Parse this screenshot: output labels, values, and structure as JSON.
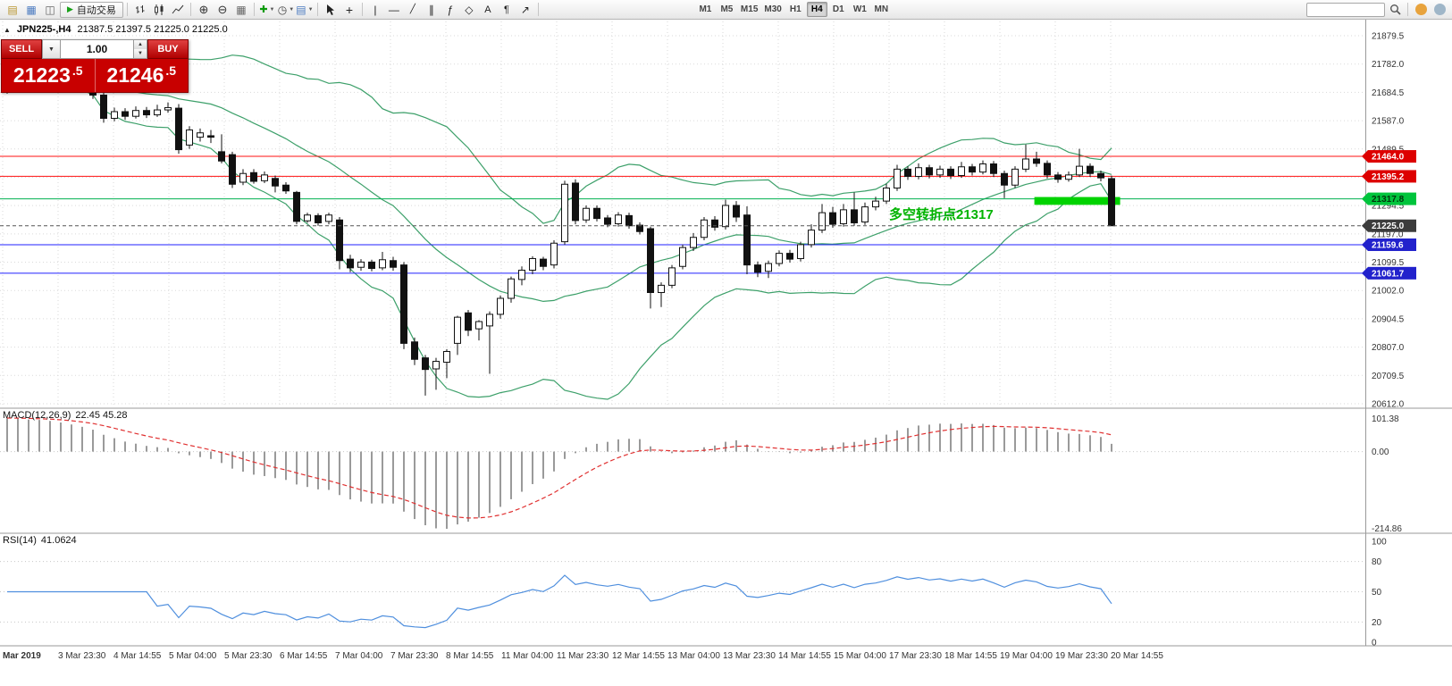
{
  "toolbar": {
    "auto_trading_label": "自动交易",
    "timeframes": [
      "M1",
      "M5",
      "M15",
      "M30",
      "H1",
      "H4",
      "D1",
      "W1",
      "MN"
    ],
    "active_timeframe": "H4",
    "items": [
      {
        "type": "icon",
        "name": "new-order-icon"
      },
      {
        "type": "icon",
        "name": "chart-window-icon"
      },
      {
        "type": "icon",
        "name": "profiles-icon"
      },
      {
        "type": "auto"
      },
      {
        "type": "sep"
      },
      {
        "type": "icon",
        "name": "bar-chart-icon"
      },
      {
        "type": "icon",
        "name": "candlestick-chart-icon"
      },
      {
        "type": "icon",
        "name": "line-chart-icon"
      },
      {
        "type": "sep"
      },
      {
        "type": "icon",
        "name": "zoom-in-icon"
      },
      {
        "type": "icon",
        "name": "zoom-out-icon"
      },
      {
        "type": "icon",
        "name": "tile-windows-icon"
      },
      {
        "type": "sep"
      },
      {
        "type": "icon",
        "name": "indicators-icon",
        "caret": true
      },
      {
        "type": "icon",
        "name": "periods-icon",
        "caret": true
      },
      {
        "type": "icon",
        "name": "templates-icon",
        "caret": true
      },
      {
        "type": "sep"
      },
      {
        "type": "icon",
        "name": "cursor-icon"
      },
      {
        "type": "icon",
        "name": "crosshair-icon"
      },
      {
        "type": "sep"
      },
      {
        "type": "icon",
        "name": "vertical-line-icon"
      },
      {
        "type": "icon",
        "name": "horizontal-line-icon"
      },
      {
        "type": "icon",
        "name": "trendline-icon"
      },
      {
        "type": "icon",
        "name": "channel-icon"
      },
      {
        "type": "icon",
        "name": "fibonacci-icon"
      },
      {
        "type": "icon",
        "name": "shapes-icon"
      },
      {
        "type": "icon",
        "name": "text-icon"
      },
      {
        "type": "icon",
        "name": "text-label-icon"
      },
      {
        "type": "icon",
        "name": "arrow-icon"
      },
      {
        "type": "sep"
      },
      {
        "type": "fixed"
      },
      {
        "type": "tf"
      },
      {
        "type": "spacer"
      },
      {
        "type": "search"
      },
      {
        "type": "icon",
        "name": "search-icon"
      },
      {
        "type": "sep"
      },
      {
        "type": "icon",
        "name": "community-icon"
      },
      {
        "type": "icon",
        "name": "help-icon"
      }
    ]
  },
  "trade_panel": {
    "sell_label": "SELL",
    "buy_label": "BUY",
    "volume": "1.00",
    "sell_price_main": "21223",
    "sell_price_frac": ".5",
    "buy_price_main": "21246",
    "buy_price_frac": ".5"
  },
  "chart": {
    "symbol_period": "JPN225-,H4",
    "ohlc": "21387.5 21397.5 21225.0 21225.0",
    "annotation": {
      "text": "多空转折点21317",
      "color": "#00b300"
    },
    "lines": [
      {
        "name": "resistance-line-21464",
        "value": 21464.0,
        "label": "21464.0",
        "color": "#ff1010",
        "badge_color": "#dd0000",
        "text_color": "#ffffff"
      },
      {
        "name": "resistance-line-21395",
        "value": 21395.2,
        "label": "21395.2",
        "color": "#ff1010",
        "badge_color": "#dd0000",
        "text_color": "#ffffff"
      },
      {
        "name": "pivot-line-21317",
        "value": 21317.8,
        "label": "21317.8",
        "color": "#00b050",
        "badge_color": "#00c43c",
        "text_color": "#00330c"
      },
      {
        "name": "support-line-21159",
        "value": 21159.6,
        "label": "21159.6",
        "color": "#2020ff",
        "badge_color": "#2222cc",
        "text_color": "#ffffff"
      },
      {
        "name": "support-line-21061",
        "value": 21061.7,
        "label": "21061.7",
        "color": "#2020ff",
        "badge_color": "#2222cc",
        "text_color": "#ffffff"
      }
    ],
    "current_price": {
      "value": 21225.0,
      "label": "21225.0",
      "badge_color": "#3c3c3c",
      "text_color": "#ffffff"
    },
    "highlight": {
      "from_candle": 95.8,
      "to_candle": 103.8,
      "price_top": 21324,
      "price_bottom": 21297,
      "color": "#00d300"
    },
    "price_axis": {
      "grid_values": [
        21879.5,
        21782.0,
        21684.5,
        21587.0,
        21489.5,
        21392.0,
        21294.5,
        21197.0,
        21099.5,
        21002.0,
        20904.5,
        20807.0,
        20709.5,
        20612.0
      ]
    }
  },
  "macd": {
    "label": "MACD(12,26,9)",
    "values": "22.45 45.28",
    "axis": [
      "101.38",
      "0.00",
      "-214.86"
    ]
  },
  "rsi": {
    "label": "RSI(14)",
    "value": "41.0624",
    "axis": [
      "100",
      "80",
      "50",
      "20",
      "0"
    ],
    "levels": [
      80,
      50,
      20
    ]
  },
  "time_axis": {
    "labels": [
      "Mar 2019",
      "3 Mar 23:30",
      "4 Mar 14:55",
      "5 Mar 04:00",
      "5 Mar 23:30",
      "6 Mar 14:55",
      "7 Mar 04:00",
      "7 Mar 23:30",
      "8 Mar 14:55",
      "11 Mar 04:00",
      "11 Mar 23:30",
      "12 Mar 14:55",
      "13 Mar 04:00",
      "13 Mar 23:30",
      "14 Mar 14:55",
      "15 Mar 04:00",
      "17 Mar 23:30",
      "18 Mar 14:55",
      "19 Mar 04:00",
      "19 Mar 23:30",
      "20 Mar 14:55"
    ]
  },
  "chart_data": {
    "type": "candlestick",
    "symbol": "JPN225-",
    "timeframe": "H4",
    "last_ohlc": {
      "open": 21387.5,
      "high": 21397.5,
      "low": 21225.0,
      "close": 21225.0
    },
    "indicators": {
      "bollinger": {
        "period": 20,
        "deviation": 2
      },
      "macd": {
        "fast": 12,
        "slow": 26,
        "signal": 9
      },
      "rsi": {
        "period": 14
      }
    },
    "price_range_visible": [
      20612.0,
      21879.5
    ],
    "candles": [
      [
        21700,
        21720,
        21680,
        21710
      ],
      [
        21710,
        21745,
        21700,
        21735
      ],
      [
        21735,
        21750,
        21715,
        21725
      ],
      [
        21725,
        21755,
        21712,
        21748
      ],
      [
        21748,
        21762,
        21730,
        21740
      ],
      [
        21740,
        21756,
        21718,
        21726
      ],
      [
        21726,
        21740,
        21700,
        21712
      ],
      [
        21712,
        21725,
        21688,
        21698
      ],
      [
        21698,
        21710,
        21662,
        21675
      ],
      [
        21675,
        21685,
        21580,
        21595
      ],
      [
        21595,
        21632,
        21585,
        21618
      ],
      [
        21618,
        21630,
        21590,
        21602
      ],
      [
        21602,
        21636,
        21594,
        21622
      ],
      [
        21622,
        21634,
        21596,
        21607
      ],
      [
        21607,
        21642,
        21600,
        21624
      ],
      [
        21624,
        21650,
        21614,
        21632
      ],
      [
        21630,
        21644,
        21473,
        21487
      ],
      [
        21503,
        21568,
        21490,
        21555
      ],
      [
        21530,
        21560,
        21515,
        21545
      ],
      [
        21535,
        21555,
        21510,
        21530
      ],
      [
        21480,
        21540,
        21440,
        21448
      ],
      [
        21470,
        21480,
        21355,
        21368
      ],
      [
        21375,
        21420,
        21365,
        21405
      ],
      [
        21408,
        21420,
        21370,
        21378
      ],
      [
        21380,
        21412,
        21372,
        21400
      ],
      [
        21388,
        21398,
        21340,
        21362
      ],
      [
        21365,
        21375,
        21335,
        21345
      ],
      [
        21340,
        21345,
        21230,
        21240
      ],
      [
        21242,
        21270,
        21235,
        21262
      ],
      [
        21260,
        21268,
        21225,
        21235
      ],
      [
        21240,
        21270,
        21230,
        21262
      ],
      [
        21245,
        21255,
        21075,
        21105
      ],
      [
        21110,
        21125,
        21065,
        21080
      ],
      [
        21082,
        21110,
        21070,
        21100
      ],
      [
        21100,
        21108,
        21068,
        21078
      ],
      [
        21080,
        21135,
        21072,
        21108
      ],
      [
        21105,
        21118,
        21070,
        21082
      ],
      [
        21090,
        21100,
        20800,
        20820
      ],
      [
        20825,
        20840,
        20745,
        20765
      ],
      [
        20770,
        20780,
        20640,
        20730
      ],
      [
        20732,
        20770,
        20660,
        20758
      ],
      [
        20755,
        20800,
        20700,
        20792
      ],
      [
        20820,
        20915,
        20780,
        20910
      ],
      [
        20925,
        20935,
        20845,
        20865
      ],
      [
        20870,
        20900,
        20830,
        20895
      ],
      [
        20880,
        20930,
        20715,
        20920
      ],
      [
        20920,
        20985,
        20905,
        20975
      ],
      [
        20975,
        21050,
        20960,
        21042
      ],
      [
        21040,
        21085,
        21020,
        21072
      ],
      [
        21072,
        21120,
        21058,
        21112
      ],
      [
        21110,
        21118,
        21072,
        21085
      ],
      [
        21090,
        21175,
        21078,
        21165
      ],
      [
        21170,
        21380,
        21160,
        21368
      ],
      [
        21372,
        21385,
        21230,
        21243
      ],
      [
        21245,
        21295,
        21235,
        21285
      ],
      [
        21285,
        21295,
        21240,
        21250
      ],
      [
        21252,
        21262,
        21220,
        21230
      ],
      [
        21232,
        21272,
        21222,
        21262
      ],
      [
        21260,
        21270,
        21215,
        21225
      ],
      [
        21227,
        21237,
        21195,
        21205
      ],
      [
        21215,
        21222,
        20940,
        20995
      ],
      [
        20995,
        21030,
        20945,
        21020
      ],
      [
        21020,
        21090,
        21010,
        21080
      ],
      [
        21085,
        21160,
        21075,
        21150
      ],
      [
        21150,
        21200,
        21138,
        21185
      ],
      [
        21185,
        21255,
        21175,
        21245
      ],
      [
        21245,
        21258,
        21208,
        21220
      ],
      [
        21222,
        21315,
        21212,
        21295
      ],
      [
        21295,
        21310,
        21238,
        21255
      ],
      [
        21262,
        21292,
        21058,
        21090
      ],
      [
        21090,
        21102,
        21048,
        21065
      ],
      [
        21068,
        21105,
        21045,
        21095
      ],
      [
        21095,
        21140,
        21085,
        21130
      ],
      [
        21130,
        21142,
        21098,
        21110
      ],
      [
        21112,
        21170,
        21102,
        21160
      ],
      [
        21160,
        21230,
        21150,
        21210
      ],
      [
        21210,
        21300,
        21200,
        21270
      ],
      [
        21270,
        21290,
        21218,
        21230
      ],
      [
        21232,
        21300,
        21222,
        21280
      ],
      [
        21280,
        21340,
        21225,
        21235
      ],
      [
        21238,
        21305,
        21228,
        21290
      ],
      [
        21290,
        21325,
        21278,
        21310
      ],
      [
        21310,
        21370,
        21300,
        21355
      ],
      [
        21355,
        21435,
        21345,
        21420
      ],
      [
        21420,
        21430,
        21383,
        21395
      ],
      [
        21395,
        21440,
        21385,
        21425
      ],
      [
        21425,
        21435,
        21388,
        21400
      ],
      [
        21400,
        21432,
        21390,
        21420
      ],
      [
        21420,
        21430,
        21386,
        21398
      ],
      [
        21398,
        21445,
        21390,
        21428
      ],
      [
        21428,
        21438,
        21398,
        21410
      ],
      [
        21410,
        21450,
        21402,
        21438
      ],
      [
        21438,
        21448,
        21393,
        21405
      ],
      [
        21405,
        21415,
        21320,
        21365
      ],
      [
        21365,
        21430,
        21355,
        21420
      ],
      [
        21420,
        21505,
        21410,
        21455
      ],
      [
        21455,
        21480,
        21428,
        21440
      ],
      [
        21440,
        21450,
        21388,
        21400
      ],
      [
        21400,
        21410,
        21373,
        21385
      ],
      [
        21385,
        21412,
        21377,
        21400
      ],
      [
        21400,
        21490,
        21393,
        21430
      ],
      [
        21430,
        21440,
        21393,
        21405
      ],
      [
        21405,
        21415,
        21378,
        21390
      ],
      [
        21387.5,
        21397.5,
        21225,
        21225
      ]
    ]
  }
}
